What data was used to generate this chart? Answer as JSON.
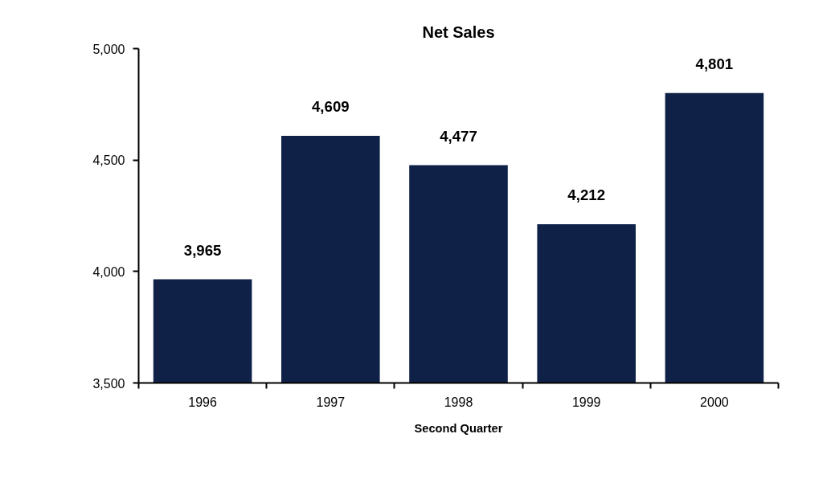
{
  "chart_data": {
    "type": "bar",
    "title": "Net Sales",
    "xlabel": "Second Quarter",
    "categories": [
      "1996",
      "1997",
      "1998",
      "1999",
      "2000"
    ],
    "values": [
      3965,
      4609,
      4477,
      4212,
      4801
    ],
    "color": "#0f2147",
    "ylim": [
      3500,
      5000
    ],
    "yticks": [
      {
        "value": 3500,
        "label": "3,500"
      },
      {
        "value": 4000,
        "label": "4,000"
      },
      {
        "value": 4500,
        "label": "4,500"
      },
      {
        "value": 5000,
        "label": "5,000"
      }
    ],
    "value_labels": [
      "3,965",
      "4,609",
      "4,477",
      "4,212",
      "4,801"
    ],
    "grid": false
  }
}
